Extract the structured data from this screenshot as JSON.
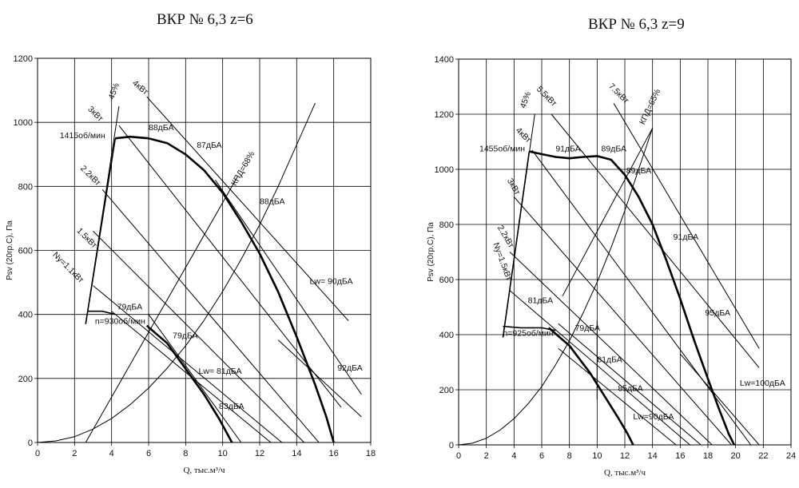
{
  "chart_data": [
    {
      "type": "line",
      "title": "ВКР № 6,3 z=6",
      "xlabel": "Q, тыс.м³/ч",
      "ylabel": "Psv (20гр.С), Па",
      "xlim": [
        0,
        18
      ],
      "ylim": [
        0,
        1200
      ],
      "xticks": [
        "0",
        "2",
        "4",
        "6",
        "8",
        "10",
        "12",
        "14",
        "16",
        "18"
      ],
      "yticks": [
        "0",
        "200",
        "400",
        "600",
        "800",
        "1000",
        "1200"
      ],
      "grid": true,
      "series": [
        {
          "name": "1415об/мин",
          "style": "thick",
          "x": [
            4.2,
            5.0,
            6.0,
            7.0,
            8.0,
            9.0,
            10.0,
            11.0,
            12.0,
            13.0,
            14.0,
            15.0,
            15.6,
            16.0
          ],
          "y": [
            950,
            955,
            950,
            935,
            900,
            850,
            780,
            690,
            590,
            470,
            330,
            180,
            80,
            0
          ]
        },
        {
          "name": "n=930об/мин",
          "style": "medium",
          "x": [
            2.7,
            3.5,
            4.2
          ],
          "y": [
            410,
            410,
            400
          ]
        },
        {
          "name": "",
          "style": "thick",
          "x": [
            5.9,
            7.0,
            8.0,
            9.0,
            9.8,
            10.5
          ],
          "y": [
            365,
            310,
            230,
            150,
            75,
            0
          ]
        },
        {
          "name": "system",
          "style": "thin",
          "x": [
            0,
            1,
            2,
            3,
            4,
            5,
            6,
            7,
            8,
            9,
            10,
            11,
            12,
            13,
            14,
            15
          ],
          "y": [
            0,
            5,
            18,
            42,
            75,
            118,
            170,
            232,
            302,
            382,
            472,
            572,
            680,
            800,
            930,
            1060
          ]
        },
        {
          "name": "speed-limit",
          "style": "medium",
          "x": [
            2.6,
            4.2
          ],
          "y": [
            370,
            950
          ]
        },
        {
          "name": "45%",
          "style": "thin",
          "x": [
            2.6,
            4.4
          ],
          "y": [
            370,
            1050
          ]
        },
        {
          "name": "КПД=68%",
          "style": "thin",
          "x": [
            2.6,
            10.8
          ],
          "y": [
            0,
            830
          ]
        },
        {
          "name": "Ny=1.1кВт",
          "style": "thin",
          "x": [
            3.0,
            13.2
          ],
          "y": [
            490,
            0
          ]
        },
        {
          "name": "1.5кВт",
          "style": "thin",
          "x": [
            3.0,
            14.4
          ],
          "y": [
            660,
            0
          ]
        },
        {
          "name": "2.2кВт",
          "style": "thin",
          "x": [
            3.5,
            15.2
          ],
          "y": [
            790,
            0
          ]
        },
        {
          "name": "3кВт",
          "style": "thin",
          "x": [
            4.4,
            16.4
          ],
          "y": [
            990,
            110
          ]
        },
        {
          "name": "4кВт",
          "style": "thin",
          "x": [
            5.9,
            16.8
          ],
          "y": [
            1080,
            380
          ]
        },
        {
          "name": "Lw=81дБА",
          "style": "thin",
          "x": [
            4.0,
            12.6
          ],
          "y": [
            410,
            0
          ]
        },
        {
          "name": "83дБА",
          "style": "thin",
          "x": [
            6.0,
            11.0
          ],
          "y": [
            400,
            0
          ]
        },
        {
          "name": "Lw=90дБА",
          "style": "thin",
          "x": [
            9.6,
            17.5
          ],
          "y": [
            820,
            150
          ]
        },
        {
          "name": "92дБА",
          "style": "thin",
          "x": [
            13.0,
            17.5
          ],
          "y": [
            320,
            80
          ]
        }
      ],
      "annotations": [
        {
          "text": "1415об/мин",
          "x": 1.2,
          "y": 950,
          "angle": 0
        },
        {
          "text": "88дБА",
          "x": 6.0,
          "y": 975,
          "angle": 0
        },
        {
          "text": "87дБА",
          "x": 8.6,
          "y": 920,
          "angle": 0
        },
        {
          "text": "88дБА",
          "x": 12.0,
          "y": 745,
          "angle": 0
        },
        {
          "text": "3кВт",
          "x": 2.7,
          "y": 1040,
          "angle": 45
        },
        {
          "text": "45%",
          "x": 4.1,
          "y": 1070,
          "angle": -70
        },
        {
          "text": "4кВт",
          "x": 5.1,
          "y": 1120,
          "angle": 40
        },
        {
          "text": "КПД=68%",
          "x": 10.7,
          "y": 800,
          "angle": -60
        },
        {
          "text": "2.2кВт",
          "x": 2.3,
          "y": 855,
          "angle": 45
        },
        {
          "text": "1.5кВт",
          "x": 2.1,
          "y": 660,
          "angle": 45
        },
        {
          "text": "Ny=1.1кВт",
          "x": 0.8,
          "y": 585,
          "angle": 45
        },
        {
          "text": "79дБА",
          "x": 4.3,
          "y": 415,
          "angle": 0
        },
        {
          "text": "n=930об/мин",
          "x": 3.1,
          "y": 370,
          "angle": 0
        },
        {
          "text": "79дБА",
          "x": 7.3,
          "y": 325,
          "angle": 0
        },
        {
          "text": "Lw= 81дБА",
          "x": 8.7,
          "y": 215,
          "angle": 0
        },
        {
          "text": "83дБА",
          "x": 9.8,
          "y": 105,
          "angle": 0
        },
        {
          "text": "Lw= 90дБА",
          "x": 14.7,
          "y": 495,
          "angle": 0
        },
        {
          "text": "92дБА",
          "x": 16.2,
          "y": 225,
          "angle": 0
        }
      ]
    },
    {
      "type": "line",
      "title": "ВКР № 6,3 z=9",
      "xlabel": "Q, тыс.м³/ч",
      "ylabel": "Psv (20гр.С), Па",
      "xlim": [
        0,
        24
      ],
      "ylim": [
        0,
        1400
      ],
      "xticks": [
        "0",
        "2",
        "4",
        "6",
        "8",
        "10",
        "12",
        "14",
        "16",
        "18",
        "20",
        "22",
        "24"
      ],
      "yticks": [
        "0",
        "200",
        "400",
        "600",
        "800",
        "1000",
        "1200",
        "1400"
      ],
      "grid": true,
      "series": [
        {
          "name": "1455об/мин",
          "style": "thick",
          "x": [
            5.1,
            6.0,
            7.0,
            8.0,
            9.0,
            10.0,
            11.0,
            12.0,
            13.0,
            14.0,
            15.0,
            16.0,
            17.0,
            18.0,
            18.8,
            19.5,
            19.9
          ],
          "y": [
            1065,
            1055,
            1045,
            1040,
            1045,
            1048,
            1035,
            980,
            900,
            800,
            670,
            530,
            380,
            240,
            130,
            40,
            0
          ]
        },
        {
          "name": "n=925об/мин",
          "style": "medium",
          "x": [
            3.2,
            4.5,
            6.0,
            7.0
          ],
          "y": [
            430,
            425,
            425,
            415
          ]
        },
        {
          "name": "",
          "style": "thick",
          "x": [
            6.5,
            8.0,
            9.5,
            10.5,
            11.5,
            12.2,
            12.6
          ],
          "y": [
            425,
            360,
            260,
            180,
            100,
            40,
            0
          ]
        },
        {
          "name": "system",
          "style": "thin",
          "x": [
            0,
            1,
            2,
            3,
            4,
            5,
            6,
            7,
            8,
            9,
            10,
            11,
            12,
            13,
            14
          ],
          "y": [
            0,
            6,
            24,
            54,
            95,
            148,
            212,
            290,
            378,
            480,
            590,
            715,
            850,
            1000,
            1150
          ]
        },
        {
          "name": "speed-limit",
          "style": "medium",
          "x": [
            3.2,
            5.1
          ],
          "y": [
            390,
            1065
          ]
        },
        {
          "name": "45%",
          "style": "thin",
          "x": [
            3.2,
            5.5
          ],
          "y": [
            390,
            1200
          ]
        },
        {
          "name": "КПД=65%",
          "style": "thin",
          "x": [
            7.5,
            14.0
          ],
          "y": [
            540,
            1150
          ]
        },
        {
          "name": "Ny=1.5кВт",
          "style": "thin",
          "x": [
            3.7,
            16.7
          ],
          "y": [
            560,
            0
          ]
        },
        {
          "name": "2.2кВт",
          "style": "thin",
          "x": [
            3.7,
            18.3
          ],
          "y": [
            700,
            0
          ]
        },
        {
          "name": "3кВт",
          "style": "thin",
          "x": [
            4.0,
            19.7
          ],
          "y": [
            900,
            0
          ]
        },
        {
          "name": "4кВт",
          "style": "thin",
          "x": [
            5.3,
            21.1
          ],
          "y": [
            1070,
            0
          ]
        },
        {
          "name": "5.5кВт",
          "style": "thin",
          "x": [
            6.7,
            21.7
          ],
          "y": [
            1200,
            280
          ]
        },
        {
          "name": "7.5кВт",
          "style": "thin",
          "x": [
            11.2,
            21.7
          ],
          "y": [
            1240,
            350
          ]
        },
        {
          "name": "Lw=90дБА",
          "style": "thin",
          "x": [
            7.2,
            17.5
          ],
          "y": [
            440,
            0
          ]
        },
        {
          "name": "85дБА",
          "style": "thin",
          "x": [
            7.2,
            15.7
          ],
          "y": [
            350,
            0
          ]
        },
        {
          "name": "Lw=100дБА",
          "style": "thin",
          "x": [
            16.0,
            21.7
          ],
          "y": [
            330,
            0
          ]
        },
        {
          "name": "79дБА",
          "style": "thin",
          "x": [
            10.0,
            10.0
          ],
          "y": [
            450,
            165
          ]
        }
      ],
      "annotations": [
        {
          "text": "1455об/мин",
          "x": 1.5,
          "y": 1065,
          "angle": 0
        },
        {
          "text": "91дБА",
          "x": 7.0,
          "y": 1065,
          "angle": 0
        },
        {
          "text": "89дБА",
          "x": 10.3,
          "y": 1065,
          "angle": 0
        },
        {
          "text": "89дБА",
          "x": 12.1,
          "y": 985,
          "angle": 0
        },
        {
          "text": "91дБА",
          "x": 15.5,
          "y": 745,
          "angle": 0
        },
        {
          "text": "95дБА",
          "x": 17.8,
          "y": 470,
          "angle": 0
        },
        {
          "text": "Lw=100дБА",
          "x": 20.3,
          "y": 215,
          "angle": 0
        },
        {
          "text": "45%",
          "x": 4.8,
          "y": 1220,
          "angle": -70
        },
        {
          "text": "5.5кВт",
          "x": 5.6,
          "y": 1290,
          "angle": 45
        },
        {
          "text": "7.5кВт",
          "x": 10.8,
          "y": 1300,
          "angle": 45
        },
        {
          "text": "КПД=65%",
          "x": 13.4,
          "y": 1160,
          "angle": -65
        },
        {
          "text": "4кВт",
          "x": 4.1,
          "y": 1140,
          "angle": 45
        },
        {
          "text": "3кВт",
          "x": 3.5,
          "y": 960,
          "angle": 60
        },
        {
          "text": "2.2кВт",
          "x": 2.8,
          "y": 790,
          "angle": 60
        },
        {
          "text": "Ny=1.5кВт",
          "x": 2.5,
          "y": 730,
          "angle": 70
        },
        {
          "text": "81дБА",
          "x": 5.0,
          "y": 515,
          "angle": 0
        },
        {
          "text": "n=925об/мин",
          "x": 3.2,
          "y": 395,
          "angle": 0
        },
        {
          "text": "79дБА",
          "x": 8.4,
          "y": 415,
          "angle": 0
        },
        {
          "text": "81дБА",
          "x": 10.0,
          "y": 300,
          "angle": 0
        },
        {
          "text": "85дБА",
          "x": 11.5,
          "y": 195,
          "angle": 0
        },
        {
          "text": "Lw=90дБА",
          "x": 12.6,
          "y": 93,
          "angle": 0
        }
      ]
    }
  ]
}
